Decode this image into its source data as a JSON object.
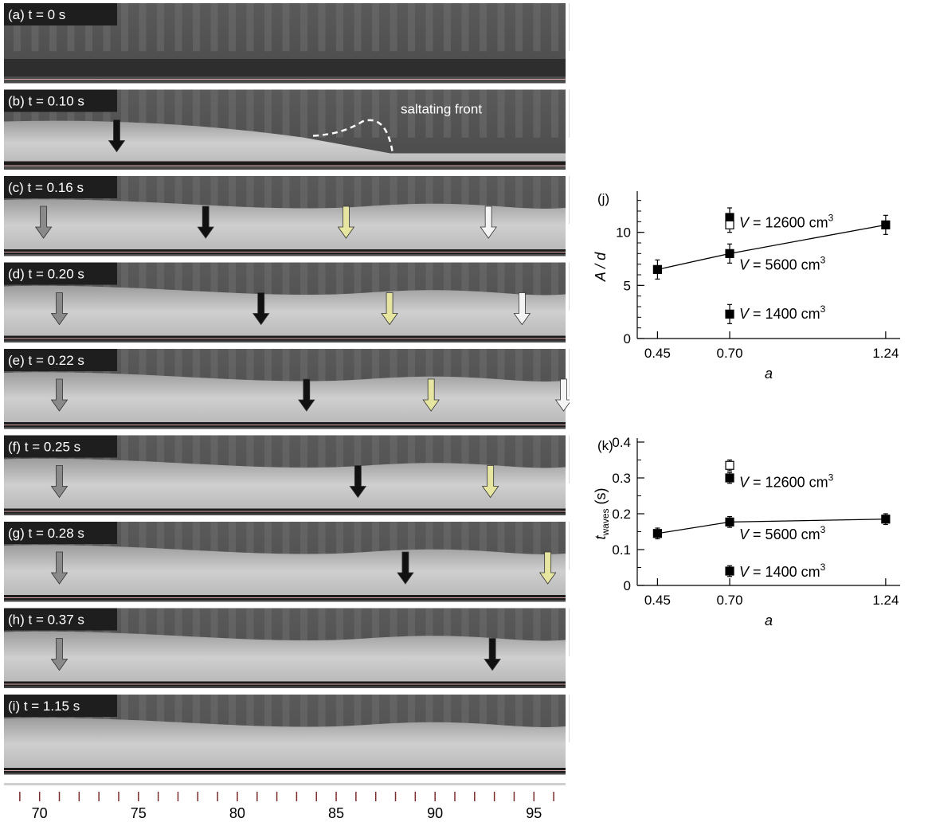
{
  "figure": {
    "photo_strip": {
      "panels": [
        {
          "label": "(a) t = 0 s",
          "arrows": []
        },
        {
          "label": "(b) t = 0.10 s",
          "annotation": "saltating front",
          "arrows": [
            {
              "x": 73.9,
              "color": "black"
            }
          ]
        },
        {
          "label": "(c) t = 0.16 s",
          "arrows": [
            {
              "x": 70.2,
              "color": "gray"
            },
            {
              "x": 78.4,
              "color": "black"
            },
            {
              "x": 85.5,
              "color": "yellow"
            },
            {
              "x": 92.7,
              "color": "white"
            }
          ]
        },
        {
          "label": "(d) t = 0.20 s",
          "arrows": [
            {
              "x": 71.0,
              "color": "gray"
            },
            {
              "x": 81.2,
              "color": "black"
            },
            {
              "x": 87.7,
              "color": "yellow"
            },
            {
              "x": 94.4,
              "color": "white"
            }
          ]
        },
        {
          "label": "(e) t = 0.22 s",
          "arrows": [
            {
              "x": 71.0,
              "color": "gray"
            },
            {
              "x": 83.5,
              "color": "black"
            },
            {
              "x": 89.8,
              "color": "yellow"
            },
            {
              "x": 96.5,
              "color": "white"
            }
          ]
        },
        {
          "label": "(f) t = 0.25 s",
          "arrows": [
            {
              "x": 71.0,
              "color": "gray"
            },
            {
              "x": 86.1,
              "color": "black"
            },
            {
              "x": 92.8,
              "color": "yellow"
            }
          ]
        },
        {
          "label": "(g) t = 0.28 s",
          "arrows": [
            {
              "x": 71.0,
              "color": "gray"
            },
            {
              "x": 88.5,
              "color": "black"
            },
            {
              "x": 95.7,
              "color": "yellow"
            }
          ]
        },
        {
          "label": "(h) t = 0.37 s",
          "arrows": [
            {
              "x": 71.0,
              "color": "gray"
            },
            {
              "x": 92.9,
              "color": "black"
            }
          ]
        },
        {
          "label": "(i) t = 1.15 s",
          "arrows": []
        }
      ],
      "scale": {
        "ticks": [
          "70",
          "75",
          "80",
          "85",
          "90",
          "95"
        ],
        "min": 68.2,
        "max": 96.6
      }
    },
    "colors": {
      "black_arrow": "#111111",
      "gray_arrow": "#8a8a8a",
      "yellow_arrow": "#e6e6a0",
      "white_arrow": "#f4f4f4",
      "label_bg": "#1e1e1e"
    }
  },
  "chart_data": [
    {
      "panel": "(j)",
      "type": "scatter",
      "ylabel_main": "A / d",
      "xlabel": "a",
      "xticks": [
        "0.45",
        "0.70",
        "1.24"
      ],
      "xvals": [
        0.45,
        0.7,
        1.24
      ],
      "xlim": [
        0.38,
        1.29
      ],
      "ylim": [
        0,
        13.5
      ],
      "yticks": [
        0,
        5,
        10
      ],
      "series": [
        {
          "name": "V = 5600 cm³",
          "line": true,
          "filled": true,
          "points": [
            {
              "x": 0.45,
              "y": 6.5,
              "err": 0.9
            },
            {
              "x": 0.7,
              "y": 8.0,
              "err": 0.9
            },
            {
              "x": 1.24,
              "y": 10.7,
              "err": 0.9
            }
          ]
        },
        {
          "name": "V = 12600 cm³",
          "filled": true,
          "points": [
            {
              "x": 0.7,
              "y": 11.4,
              "err": 0.9
            }
          ]
        },
        {
          "name": "V = 12600 cm³ (open)",
          "filled": false,
          "points": [
            {
              "x": 0.7,
              "y": 10.7,
              "err": 0.7
            }
          ]
        },
        {
          "name": "V = 1400 cm³",
          "filled": true,
          "points": [
            {
              "x": 0.7,
              "y": 2.3,
              "err": 0.9
            }
          ]
        }
      ],
      "annotations": [
        {
          "text_pre": "V",
          "text_num": " = 12600 cm",
          "sup": "3",
          "x": 0.7,
          "y": 11.0
        },
        {
          "text_pre": "V",
          "text_num": " = 5600 cm",
          "sup": "3",
          "x": 0.7,
          "y": 7.0
        },
        {
          "text_pre": "V",
          "text_num": " = 1400 cm",
          "sup": "3",
          "x": 0.7,
          "y": 2.4
        }
      ]
    },
    {
      "panel": "(k)",
      "type": "scatter",
      "ylabel_t": "t",
      "ylabel_sub": "waves",
      "ylabel_unit": " (s)",
      "xlabel": "a",
      "xticks": [
        "0.45",
        "0.70",
        "1.24"
      ],
      "xvals": [
        0.45,
        0.7,
        1.24
      ],
      "xlim": [
        0.38,
        1.29
      ],
      "ylim": [
        0,
        0.4
      ],
      "yticks": [
        0,
        0.1,
        0.2,
        0.3,
        0.4
      ],
      "ytick_labels": [
        "0",
        "0.1",
        "0.2",
        "0.3",
        "0.4"
      ],
      "series": [
        {
          "name": "V = 5600 cm³",
          "line": true,
          "filled": true,
          "points": [
            {
              "x": 0.45,
              "y": 0.145,
              "err": 0.015
            },
            {
              "x": 0.7,
              "y": 0.177,
              "err": 0.015
            },
            {
              "x": 1.24,
              "y": 0.185,
              "err": 0.015
            }
          ]
        },
        {
          "name": "V = 12600 cm³ (open)",
          "filled": false,
          "points": [
            {
              "x": 0.7,
              "y": 0.335,
              "err": 0.015
            }
          ]
        },
        {
          "name": "V = 12600 cm³",
          "filled": true,
          "points": [
            {
              "x": 0.7,
              "y": 0.3,
              "err": 0.015
            }
          ]
        },
        {
          "name": "V = 1400 cm³",
          "filled": true,
          "points": [
            {
              "x": 0.7,
              "y": 0.04,
              "err": 0.015
            }
          ]
        }
      ],
      "annotations": [
        {
          "text_pre": "V",
          "text_num": " = 12600 cm",
          "sup": "3",
          "x": 0.7,
          "y": 0.29
        },
        {
          "text_pre": "V",
          "text_num": " = 5600 cm",
          "sup": "3",
          "x": 0.7,
          "y": 0.145
        },
        {
          "text_pre": "V",
          "text_num": " = 1400 cm",
          "sup": "3",
          "x": 0.7,
          "y": 0.04
        }
      ]
    }
  ]
}
